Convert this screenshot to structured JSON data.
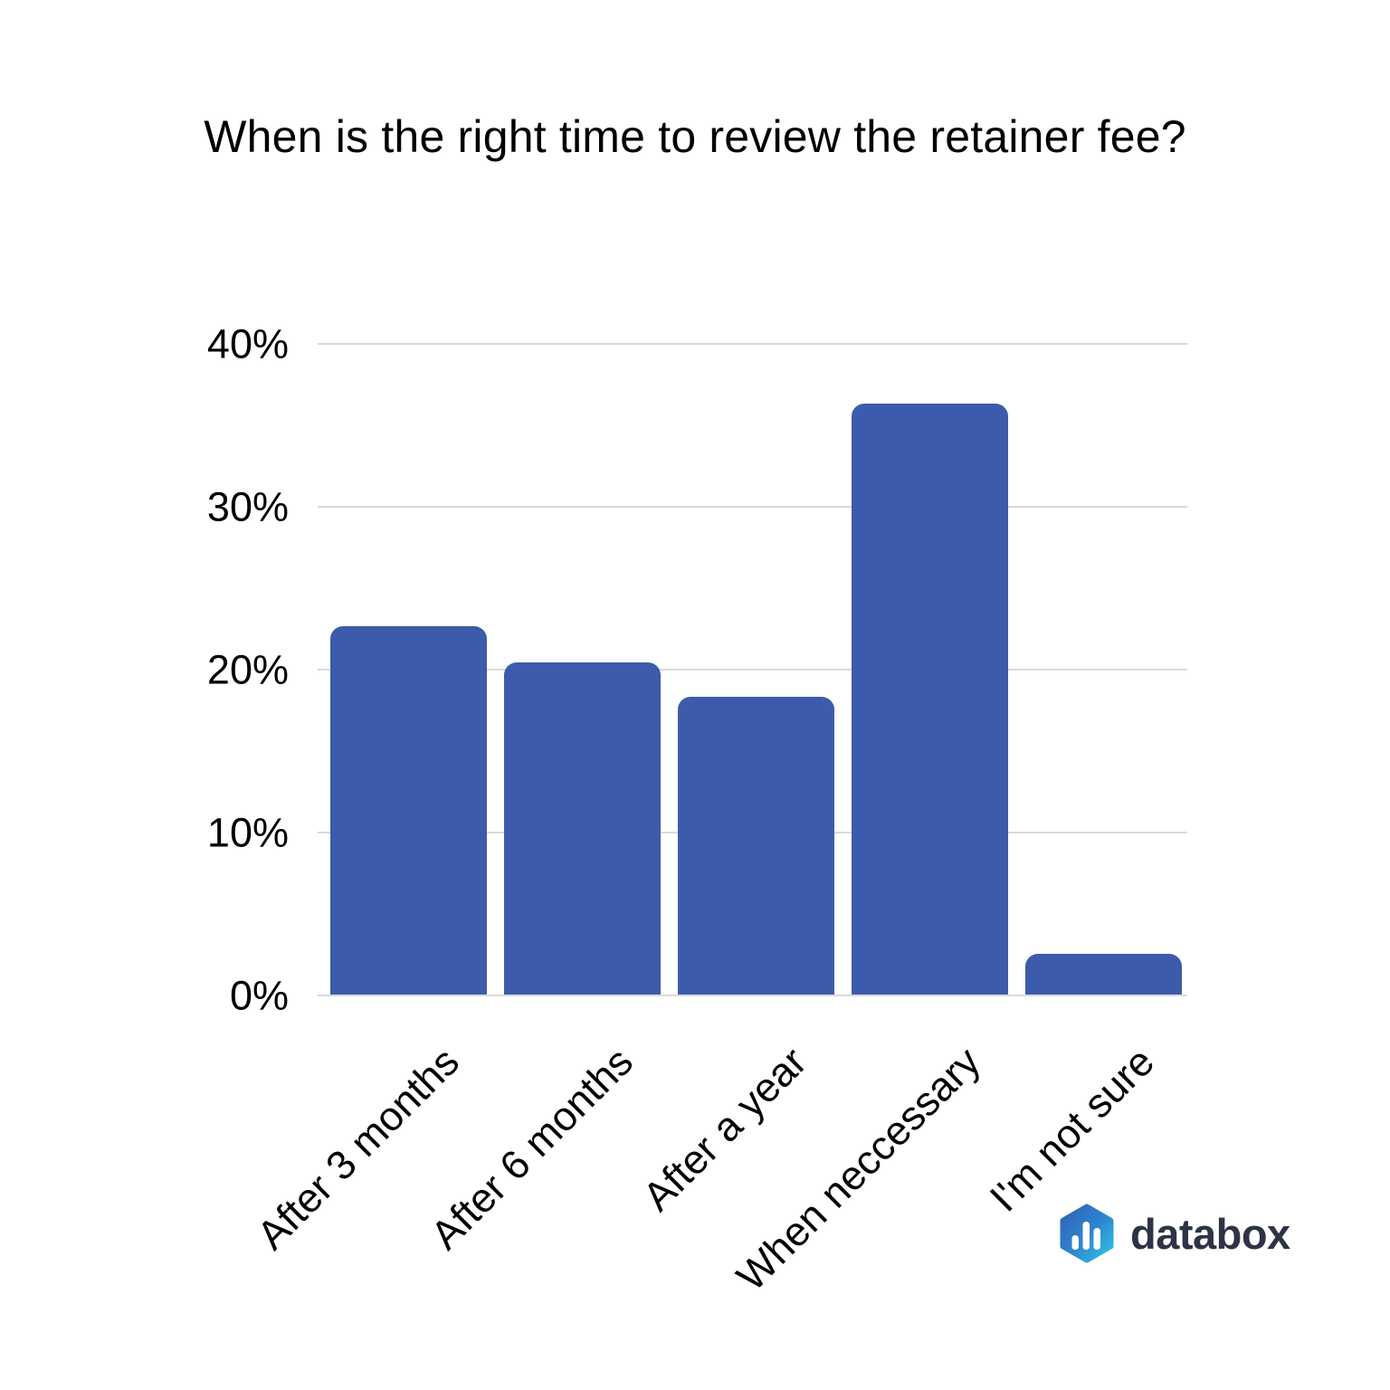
{
  "title": "When is the right time to review the retainer fee?",
  "chart_data": {
    "type": "bar",
    "title": "When is the right time to review the retainer fee?",
    "categories": [
      "After 3 months",
      "After 6 months",
      "After a year",
      "When neccessary",
      "I'm not sure"
    ],
    "values": [
      22.6,
      20.4,
      18.3,
      36.3,
      2.5
    ],
    "xlabel": "",
    "ylabel": "",
    "ylim": [
      0,
      40
    ],
    "y_tick_labels_top_down": [
      "40%",
      "30%",
      "20%",
      "10%",
      "0%"
    ],
    "grid": true,
    "legend": "none",
    "x_tick_rotation_deg": 45,
    "bar_color": "#3D5BAB",
    "gridline_color": "#D9D9D9",
    "text_color": "#000000"
  },
  "branding": {
    "logo_icon": "databox-hexagon-bar-chart-icon",
    "logo_text": "databox",
    "logo_text_color": "#2E3447",
    "logo_gradient_start": "#2F63B4",
    "logo_gradient_end": "#2EC1E7"
  }
}
